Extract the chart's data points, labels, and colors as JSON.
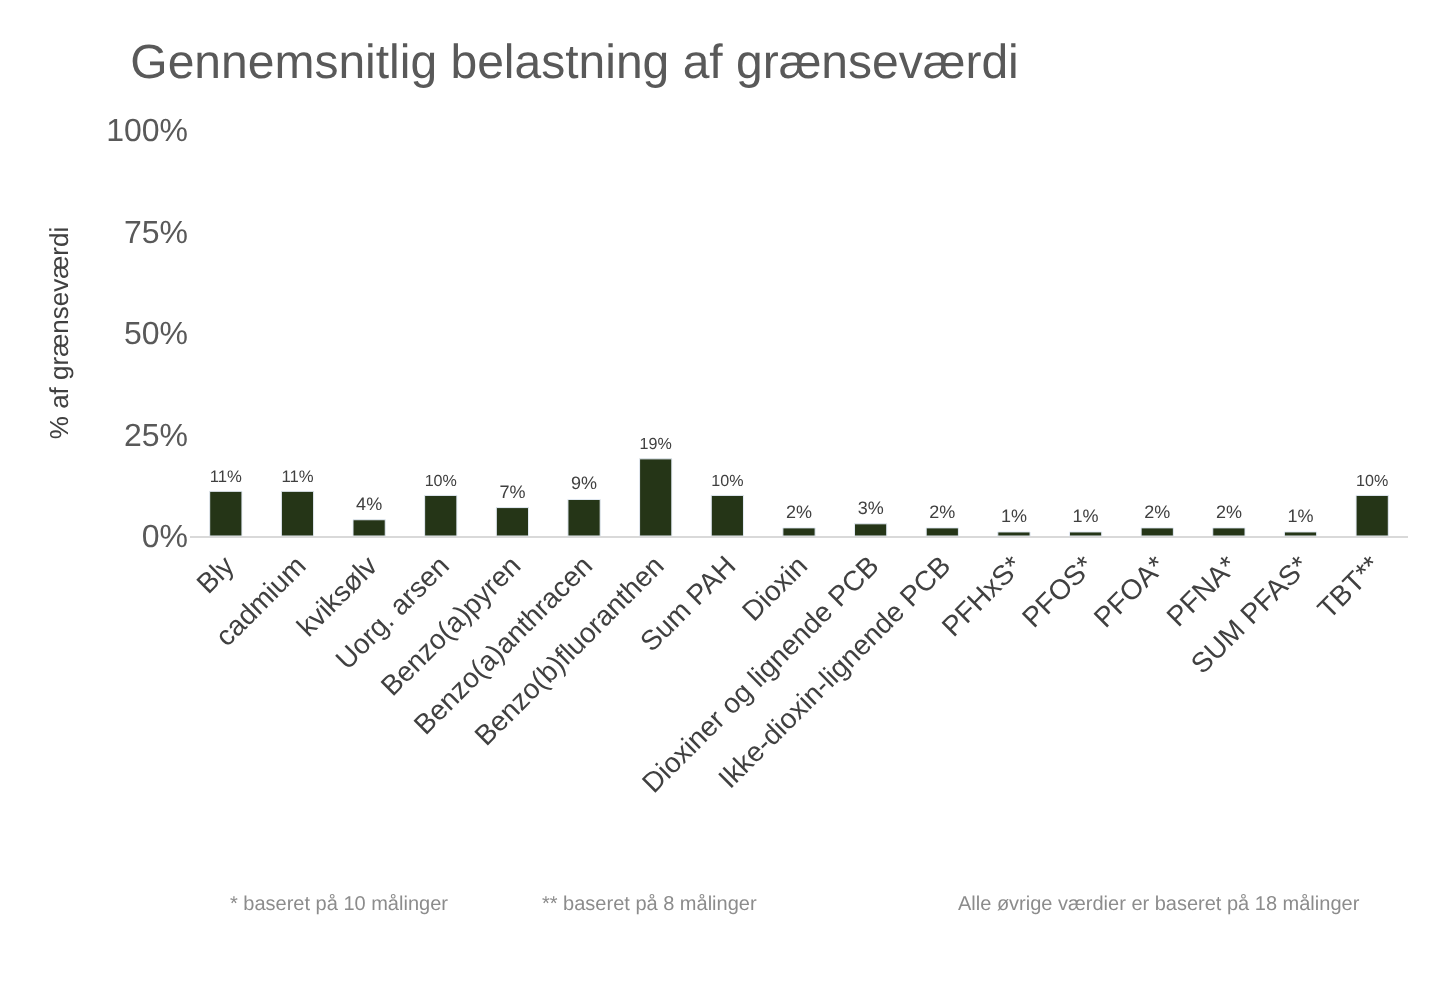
{
  "chart_data": {
    "type": "bar",
    "title": "Gennemsnitlig belastning af grænseværdi",
    "ylabel": "% af grænseværdi",
    "categories": [
      "Bly",
      "cadmium",
      "kviksølv",
      "Uorg. arsen",
      "Benzo(a)pyren",
      "Benzo(a)anthracen",
      "Benzo(b)fluoranthen",
      "Sum PAH",
      "Dioxin",
      "Dioxiner og lignende PCB",
      "Ikke-dioxin-lignende PCB",
      "PFHxS*",
      "PFOS*",
      "PFOA*",
      "PFNA*",
      "SUM PFAS*",
      "TBT**"
    ],
    "values": [
      11,
      11,
      4,
      10,
      7,
      9,
      19,
      10,
      2,
      3,
      2,
      1,
      1,
      2,
      2,
      1,
      10
    ],
    "value_labels": [
      "11%",
      "11%",
      "4%",
      "10%",
      "7%",
      "9%",
      "19%",
      "10%",
      "2%",
      "3%",
      "2%",
      "1%",
      "1%",
      "2%",
      "2%",
      "1%",
      "10%"
    ],
    "color": "#253517",
    "ylim": [
      0,
      100
    ],
    "yticks": [
      {
        "value": 0,
        "label": "0%"
      },
      {
        "value": 25,
        "label": "25%"
      },
      {
        "value": 50,
        "label": "50%"
      },
      {
        "value": 75,
        "label": "75%"
      },
      {
        "value": 100,
        "label": "100%"
      }
    ],
    "grid": false,
    "legend": false,
    "annotations": [
      "* baseret på 10 målinger",
      "** baseret på 8 målinger",
      "Alle øvrige værdier er baseret på 18 målinger"
    ]
  }
}
